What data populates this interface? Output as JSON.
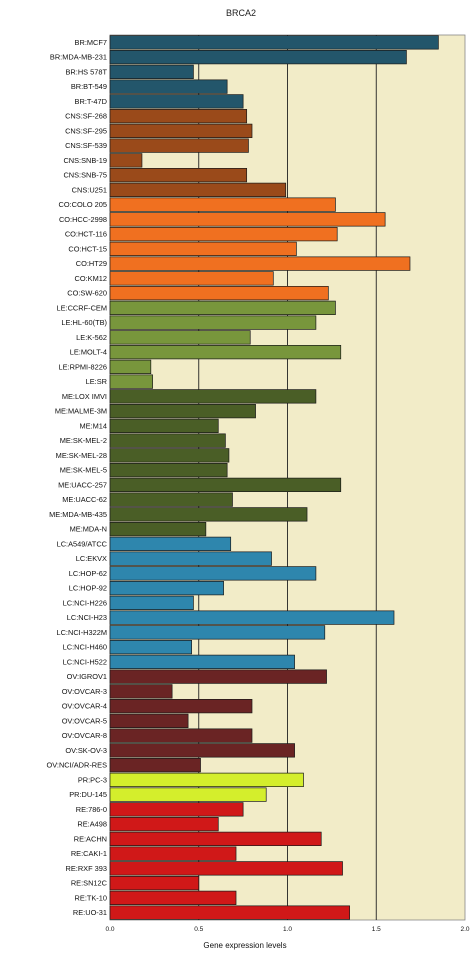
{
  "chart_data": {
    "type": "bar",
    "orientation": "horizontal",
    "title": "BRCA2",
    "xlabel": "Gene expression levels",
    "ylabel": "",
    "xlim": [
      0,
      2
    ],
    "x_ticks": [
      "0.0",
      "0.5",
      "1.0",
      "1.5",
      "2.0"
    ],
    "grid": "vertical lines at 0.5, 1.0, 1.5",
    "plot_background": "#f2ecc8",
    "categories": [
      "BR:MCF7",
      "BR:MDA-MB-231",
      "BR:HS 578T",
      "BR:BT-549",
      "BR:T-47D",
      "CNS:SF-268",
      "CNS:SF-295",
      "CNS:SF-539",
      "CNS:SNB-19",
      "CNS:SNB-75",
      "CNS:U251",
      "CO:COLO 205",
      "CO:HCC-2998",
      "CO:HCT-116",
      "CO:HCT-15",
      "CO:HT29",
      "CO:KM12",
      "CO:SW-620",
      "LE:CCRF-CEM",
      "LE:HL-60(TB)",
      "LE:K-562",
      "LE:MOLT-4",
      "LE:RPMI-8226",
      "LE:SR",
      "ME:LOX IMVI",
      "ME:MALME-3M",
      "ME:M14",
      "ME:SK-MEL-2",
      "ME:SK-MEL-28",
      "ME:SK-MEL-5",
      "ME:UACC-257",
      "ME:UACC-62",
      "ME:MDA-MB-435",
      "ME:MDA-N",
      "LC:A549/ATCC",
      "LC:EKVX",
      "LC:HOP-62",
      "LC:HOP-92",
      "LC:NCI-H226",
      "LC:NCI-H23",
      "LC:NCI-H322M",
      "LC:NCI-H460",
      "LC:NCI-H522",
      "OV:IGROV1",
      "OV:OVCAR-3",
      "OV:OVCAR-4",
      "OV:OVCAR-5",
      "OV:OVCAR-8",
      "OV:SK-OV-3",
      "OV:NCI/ADR-RES",
      "PR:PC-3",
      "PR:DU-145",
      "RE:786-0",
      "RE:A498",
      "RE:ACHN",
      "RE:CAKI-1",
      "RE:RXF 393",
      "RE:SN12C",
      "RE:TK-10",
      "RE:UO-31"
    ],
    "values": [
      1.85,
      1.67,
      0.47,
      0.66,
      0.75,
      0.77,
      0.8,
      0.78,
      0.18,
      0.77,
      0.99,
      1.27,
      1.55,
      1.28,
      1.05,
      1.69,
      0.92,
      1.23,
      1.27,
      1.16,
      0.79,
      1.3,
      0.23,
      0.24,
      1.16,
      0.82,
      0.61,
      0.65,
      0.67,
      0.66,
      1.3,
      0.69,
      1.11,
      0.54,
      0.68,
      0.91,
      1.16,
      0.64,
      0.47,
      1.6,
      1.21,
      0.46,
      1.04,
      1.22,
      0.35,
      0.8,
      0.44,
      0.8,
      1.04,
      0.51,
      1.09,
      0.88,
      0.75,
      0.61,
      1.19,
      0.71,
      1.31,
      0.5,
      0.71,
      1.35
    ],
    "groups": [
      {
        "prefix": "BR",
        "count": 5,
        "color": "#23566b"
      },
      {
        "prefix": "CNS",
        "count": 6,
        "color": "#9a4a1a"
      },
      {
        "prefix": "CO",
        "count": 7,
        "color": "#f07020"
      },
      {
        "prefix": "LE",
        "count": 6,
        "color": "#78963c"
      },
      {
        "prefix": "ME",
        "count": 10,
        "color": "#4a5e26"
      },
      {
        "prefix": "LC",
        "count": 9,
        "color": "#2e86ad"
      },
      {
        "prefix": "OV",
        "count": 7,
        "color": "#6a2424"
      },
      {
        "prefix": "PR",
        "count": 2,
        "color": "#d4ee2c"
      },
      {
        "prefix": "RE",
        "count": 8,
        "color": "#d01818"
      }
    ]
  }
}
